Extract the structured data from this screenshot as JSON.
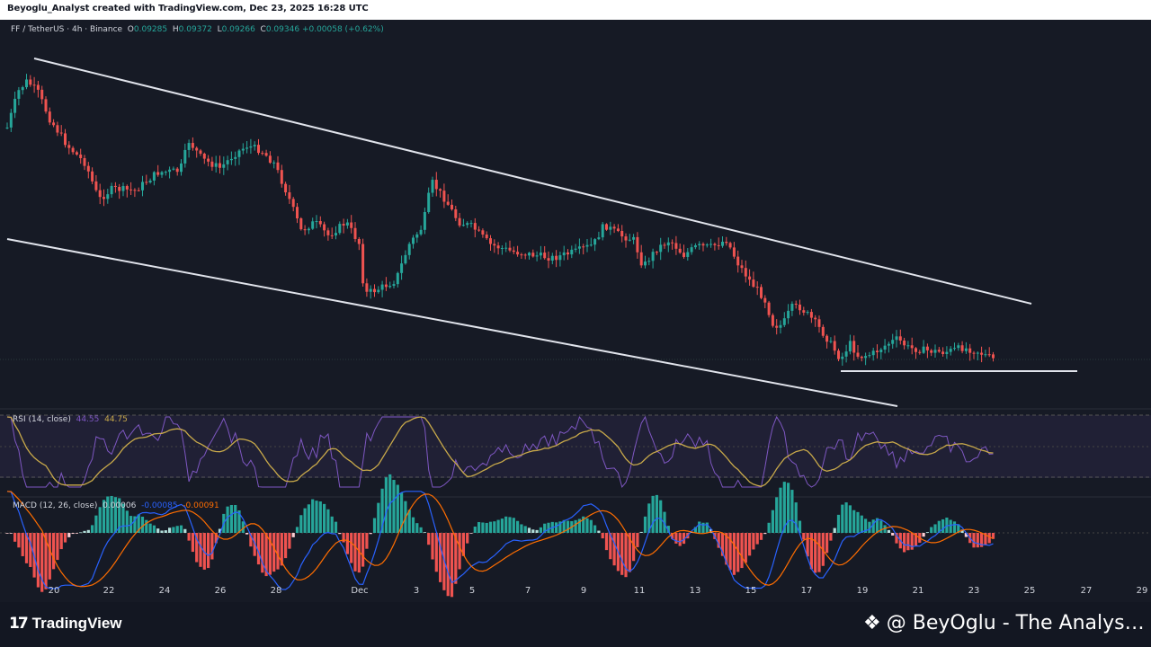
{
  "header": {
    "attribution": "Beyoglu_Analyst created with TradingView.com, Dec 23, 2025 16:28 UTC"
  },
  "symbol": {
    "pair": "FF / TetherUS · 4h · Binance",
    "open_label": "O",
    "open": "0.09285",
    "high_label": "H",
    "high": "0.09372",
    "low_label": "L",
    "low": "0.09266",
    "close_label": "C",
    "close": "0.09346",
    "change": "+0.00058 (+0.62%)"
  },
  "rsi": {
    "label": "RSI (14, close)",
    "value1": "44.55",
    "value2": "44.75"
  },
  "macd": {
    "label": "MACD (12, 26, close)",
    "hist": "0.00006",
    "macd": "-0.00085",
    "signal": "-0.00091"
  },
  "x_axis": {
    "ticks": [
      "20",
      "22",
      "24",
      "26",
      "28",
      "Dec",
      "3",
      "5",
      "7",
      "9",
      "11",
      "13",
      "15",
      "17",
      "19",
      "21",
      "23",
      "25",
      "27",
      "29"
    ]
  },
  "branding": {
    "logo_text": "TradingView",
    "author": "@ BeyOglu - The Analys…"
  },
  "colors": {
    "up": "#26a69a",
    "down": "#ef5350",
    "rsi_line": "#7e57c2",
    "rsi_ma": "#c8a94a",
    "macd_line": "#2962ff",
    "signal_line": "#ff6d00",
    "trendline": "#e0e3eb"
  },
  "drawings": {
    "channel_top": [
      "Nov 19",
      "Dec 25"
    ],
    "channel_bottom": [
      "Nov 18",
      "Dec 19"
    ],
    "support_line": [
      "Dec 18",
      "Dec 26"
    ]
  }
}
